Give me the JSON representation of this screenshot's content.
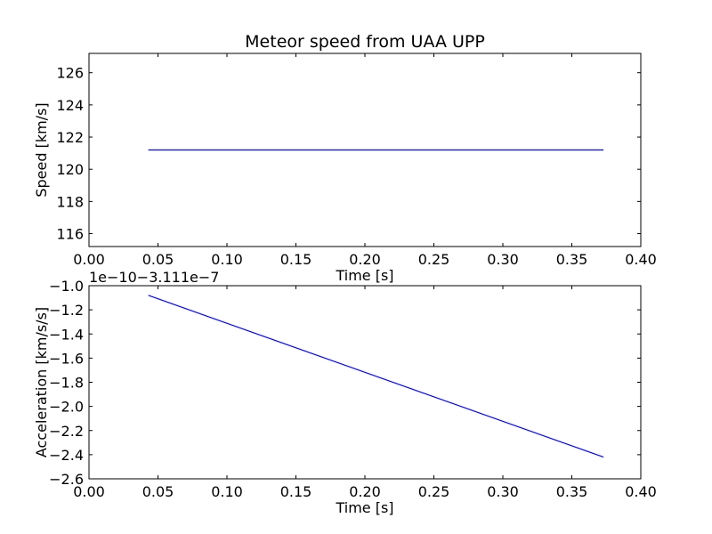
{
  "chart_data": [
    {
      "type": "line",
      "title": "Meteor speed from  UAA UPP",
      "xlabel": "Time [s]",
      "ylabel": "Speed [km/s]",
      "xlim": [
        0.0,
        0.4
      ],
      "ylim": [
        115.2,
        127.2
      ],
      "xticks": [
        0.0,
        0.05,
        0.1,
        0.15,
        0.2,
        0.25,
        0.3,
        0.35,
        0.4
      ],
      "xtick_labels": [
        "0.00",
        "0.05",
        "0.10",
        "0.15",
        "0.20",
        "0.25",
        "0.30",
        "0.35",
        "0.40"
      ],
      "yticks": [
        116,
        118,
        120,
        122,
        124,
        126
      ],
      "ytick_labels": [
        "116",
        "118",
        "120",
        "122",
        "124",
        "126"
      ],
      "grid": false,
      "series": [
        {
          "color": "#0000ff",
          "x": [
            0.043,
            0.373
          ],
          "y": [
            121.2,
            121.2
          ]
        }
      ]
    },
    {
      "type": "line",
      "title": "",
      "xlabel": "Time [s]",
      "ylabel": "Acceleration [km/s/s]",
      "offset_text": "1e−10−3.111e−7",
      "xlim": [
        0.0,
        0.4
      ],
      "ylim": [
        -2.6,
        -1.0
      ],
      "xticks": [
        0.0,
        0.05,
        0.1,
        0.15,
        0.2,
        0.25,
        0.3,
        0.35,
        0.4
      ],
      "xtick_labels": [
        "0.00",
        "0.05",
        "0.10",
        "0.15",
        "0.20",
        "0.25",
        "0.30",
        "0.35",
        "0.40"
      ],
      "yticks": [
        -1.0,
        -1.2,
        -1.4,
        -1.6,
        -1.8,
        -2.0,
        -2.2,
        -2.4,
        -2.6
      ],
      "ytick_labels": [
        "−1.0",
        "−1.2",
        "−1.4",
        "−1.6",
        "−1.8",
        "−2.0",
        "−2.2",
        "−2.4",
        "−2.6"
      ],
      "grid": false,
      "series": [
        {
          "color": "#0000ff",
          "x": [
            0.043,
            0.373
          ],
          "y": [
            -1.08,
            -2.42
          ]
        }
      ]
    }
  ]
}
